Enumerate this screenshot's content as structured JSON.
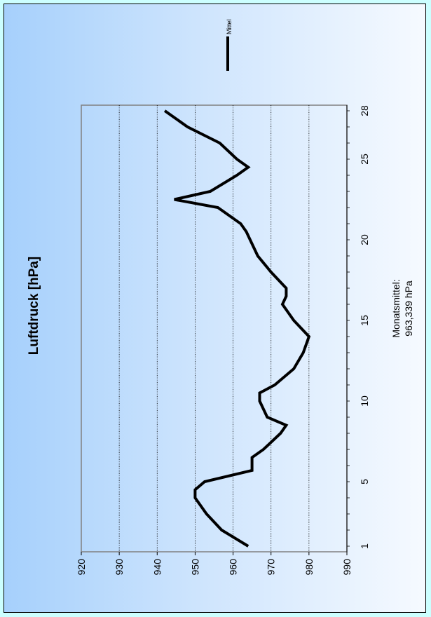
{
  "chart_data": {
    "type": "line",
    "title": "Luftdruck [hPa]",
    "annotation_line1": "Monatsmittel:",
    "annotation_line2": "963,339 hPa",
    "xlabel": "",
    "ylabel": "",
    "ylim": [
      920,
      990
    ],
    "xlim": [
      1,
      28
    ],
    "x_ticks": [
      "1",
      "5",
      "10",
      "15",
      "20",
      "25",
      "28"
    ],
    "x_tick_values": [
      1,
      5,
      10,
      15,
      20,
      25,
      28
    ],
    "y_ticks": [
      "920",
      "930",
      "940",
      "950",
      "960",
      "970",
      "980",
      "990"
    ],
    "y_tick_values": [
      920,
      930,
      940,
      950,
      960,
      970,
      980,
      990
    ],
    "grid": true,
    "legend_position": "right",
    "series": [
      {
        "name": "Mittel",
        "color": "#000000",
        "x": [
          1,
          2,
          3,
          4,
          4.5,
          5,
          5.7,
          6.5,
          7,
          8,
          8.5,
          9,
          10,
          10.5,
          11,
          12,
          13,
          14,
          15,
          15.5,
          16,
          16.5,
          17,
          18,
          19,
          20,
          20.5,
          21,
          22,
          22.5,
          23,
          24,
          24.5,
          25,
          26,
          27,
          28
        ],
        "values": [
          964,
          957,
          953,
          950,
          950,
          952.5,
          965,
          965,
          968,
          972.5,
          974,
          969,
          967,
          967,
          971,
          976,
          978.5,
          980,
          976,
          974.5,
          973,
          974,
          974,
          970,
          966.5,
          964.5,
          963.5,
          962,
          956,
          944.5,
          954,
          961,
          964,
          961,
          956.5,
          948,
          942
        ]
      }
    ]
  }
}
